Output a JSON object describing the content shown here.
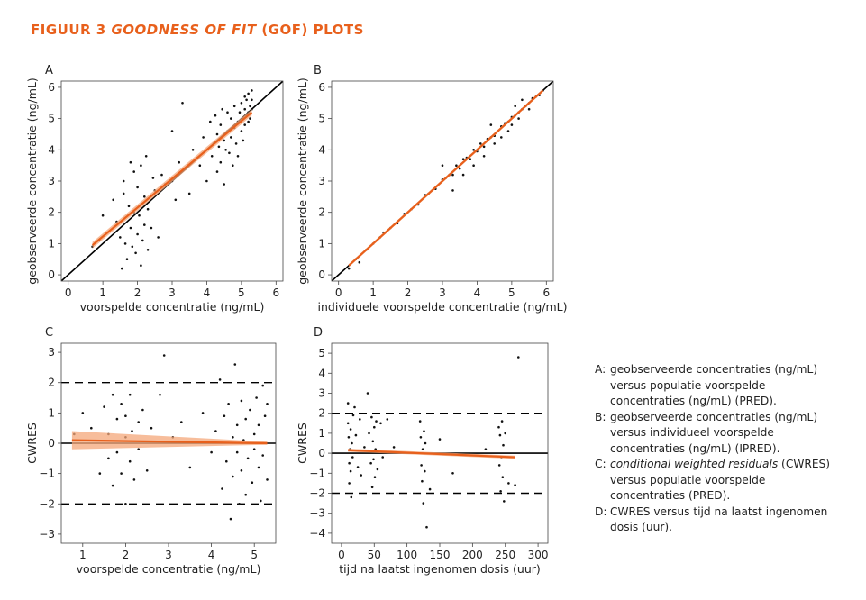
{
  "figure": {
    "title_prefix": "FIGUUR 3",
    "title_italic": "GOODNESS OF FIT",
    "title_suffix": "(GOF) PLOTS",
    "colors": {
      "title": "#e8601c",
      "trend": "#e8601c",
      "trend_band": "#f4a77a",
      "points": "#111111"
    }
  },
  "legend": [
    {
      "key": "A:",
      "text": "geobserveerde concentraties (ng/mL) versus populatie voorspelde concentraties (ng/mL) (PRED).",
      "italic": ""
    },
    {
      "key": "B:",
      "text": "geobserveerde concentraties (ng/mL) versus individueel voorspelde concentraties (ng/mL) (IPRED).",
      "italic": ""
    },
    {
      "key": "C:",
      "text": " (CWRES) versus populatie voorspelde concentraties (PRED).",
      "italic": "conditional weighted residuals"
    },
    {
      "key": "D:",
      "text": "CWRES versus tijd na laatst ingenomen dosis (uur).",
      "italic": ""
    }
  ],
  "chart_data": [
    {
      "panel": "A",
      "type": "scatter",
      "xlabel": "voorspelde concentratie (ng/mL)",
      "ylabel": "geobserveerde concentratie (ng/mL)",
      "xlim": [
        -0.2,
        6.2
      ],
      "ylim": [
        -0.2,
        6.2
      ],
      "xticks": [
        0,
        1,
        2,
        3,
        4,
        5,
        6
      ],
      "yticks": [
        0,
        1,
        2,
        3,
        4,
        5,
        6
      ],
      "reference": {
        "type": "identity",
        "label": "y = x"
      },
      "trend": {
        "x": [
          0.7,
          5.3
        ],
        "y": [
          0.95,
          5.2
        ],
        "band": 0.1
      },
      "points": [
        [
          0.7,
          0.9
        ],
        [
          0.9,
          1.1
        ],
        [
          1.0,
          1.9
        ],
        [
          1.3,
          2.4
        ],
        [
          1.4,
          1.7
        ],
        [
          1.5,
          1.2
        ],
        [
          1.55,
          0.2
        ],
        [
          1.6,
          2.6
        ],
        [
          1.6,
          3.0
        ],
        [
          1.65,
          1.0
        ],
        [
          1.7,
          0.5
        ],
        [
          1.75,
          2.2
        ],
        [
          1.8,
          3.6
        ],
        [
          1.8,
          1.5
        ],
        [
          1.85,
          0.9
        ],
        [
          1.9,
          2.0
        ],
        [
          1.9,
          3.3
        ],
        [
          1.95,
          0.7
        ],
        [
          2.0,
          1.3
        ],
        [
          2.0,
          2.8
        ],
        [
          2.05,
          1.9
        ],
        [
          2.1,
          0.3
        ],
        [
          2.1,
          3.5
        ],
        [
          2.15,
          1.1
        ],
        [
          2.2,
          2.5
        ],
        [
          2.2,
          1.6
        ],
        [
          2.25,
          3.8
        ],
        [
          2.3,
          2.1
        ],
        [
          2.3,
          0.8
        ],
        [
          2.4,
          1.5
        ],
        [
          2.45,
          3.1
        ],
        [
          2.5,
          2.7
        ],
        [
          2.6,
          1.2
        ],
        [
          2.7,
          3.2
        ],
        [
          2.8,
          2.9
        ],
        [
          3.0,
          4.6
        ],
        [
          3.0,
          3.0
        ],
        [
          3.1,
          2.4
        ],
        [
          3.2,
          3.6
        ],
        [
          3.3,
          5.5
        ],
        [
          3.4,
          3.4
        ],
        [
          3.5,
          2.6
        ],
        [
          3.6,
          4.0
        ],
        [
          3.8,
          3.5
        ],
        [
          3.9,
          4.4
        ],
        [
          4.0,
          3.0
        ],
        [
          4.1,
          4.9
        ],
        [
          4.15,
          3.8
        ],
        [
          4.2,
          4.2
        ],
        [
          4.25,
          5.1
        ],
        [
          4.3,
          4.5
        ],
        [
          4.3,
          3.3
        ],
        [
          4.35,
          4.1
        ],
        [
          4.4,
          4.8
        ],
        [
          4.4,
          3.6
        ],
        [
          4.45,
          5.3
        ],
        [
          4.5,
          4.3
        ],
        [
          4.5,
          2.9
        ],
        [
          4.55,
          4.0
        ],
        [
          4.6,
          4.6
        ],
        [
          4.6,
          5.2
        ],
        [
          4.65,
          3.9
        ],
        [
          4.7,
          4.4
        ],
        [
          4.7,
          5.0
        ],
        [
          4.75,
          3.5
        ],
        [
          4.8,
          4.7
        ],
        [
          4.8,
          5.4
        ],
        [
          4.85,
          4.2
        ],
        [
          4.9,
          4.9
        ],
        [
          4.9,
          3.8
        ],
        [
          4.95,
          5.2
        ],
        [
          5.0,
          4.6
        ],
        [
          5.0,
          5.5
        ],
        [
          5.05,
          5.0
        ],
        [
          5.05,
          4.3
        ],
        [
          5.1,
          5.3
        ],
        [
          5.1,
          5.7
        ],
        [
          5.1,
          4.8
        ],
        [
          5.15,
          5.1
        ],
        [
          5.15,
          5.6
        ],
        [
          5.2,
          5.2
        ],
        [
          5.2,
          4.9
        ],
        [
          5.2,
          5.8
        ],
        [
          5.25,
          5.4
        ],
        [
          5.25,
          5.0
        ],
        [
          5.3,
          5.6
        ],
        [
          5.3,
          5.3
        ],
        [
          5.3,
          5.9
        ]
      ]
    },
    {
      "panel": "B",
      "type": "scatter",
      "xlabel": "individuele voorspelde concentratie (ng/mL)",
      "ylabel": "geobserveerde concentratie (ng/mL)",
      "xlim": [
        -0.2,
        6.2
      ],
      "ylim": [
        -0.2,
        6.2
      ],
      "xticks": [
        0,
        1,
        2,
        3,
        4,
        5,
        6
      ],
      "yticks": [
        0,
        1,
        2,
        3,
        4,
        5,
        6
      ],
      "reference": {
        "type": "identity",
        "label": "y = x"
      },
      "trend": {
        "x": [
          0.3,
          5.9
        ],
        "y": [
          0.3,
          5.9
        ],
        "band": 0.05
      },
      "points": [
        [
          0.3,
          0.2
        ],
        [
          0.5,
          0.5
        ],
        [
          0.6,
          0.4
        ],
        [
          0.8,
          0.8
        ],
        [
          1.0,
          1.0
        ],
        [
          1.2,
          1.2
        ],
        [
          1.3,
          1.35
        ],
        [
          1.5,
          1.5
        ],
        [
          1.7,
          1.65
        ],
        [
          1.9,
          1.95
        ],
        [
          2.1,
          2.1
        ],
        [
          2.3,
          2.25
        ],
        [
          2.5,
          2.55
        ],
        [
          2.6,
          2.6
        ],
        [
          2.8,
          2.75
        ],
        [
          3.0,
          3.05
        ],
        [
          3.0,
          3.5
        ],
        [
          3.1,
          3.1
        ],
        [
          3.2,
          3.2
        ],
        [
          3.3,
          3.2
        ],
        [
          3.3,
          2.7
        ],
        [
          3.4,
          3.5
        ],
        [
          3.5,
          3.4
        ],
        [
          3.6,
          3.7
        ],
        [
          3.6,
          3.2
        ],
        [
          3.7,
          3.75
        ],
        [
          3.8,
          3.7
        ],
        [
          3.9,
          4.0
        ],
        [
          3.9,
          3.5
        ],
        [
          4.0,
          3.95
        ],
        [
          4.1,
          4.2
        ],
        [
          4.2,
          4.1
        ],
        [
          4.2,
          3.8
        ],
        [
          4.3,
          4.35
        ],
        [
          4.4,
          4.4
        ],
        [
          4.4,
          4.8
        ],
        [
          4.5,
          4.45
        ],
        [
          4.5,
          4.2
        ],
        [
          4.6,
          4.6
        ],
        [
          4.7,
          4.75
        ],
        [
          4.7,
          4.4
        ],
        [
          4.8,
          4.85
        ],
        [
          4.9,
          4.9
        ],
        [
          4.9,
          4.6
        ],
        [
          5.0,
          5.05
        ],
        [
          5.0,
          4.8
        ],
        [
          5.1,
          5.1
        ],
        [
          5.1,
          5.4
        ],
        [
          5.2,
          5.2
        ],
        [
          5.2,
          5.0
        ],
        [
          5.3,
          5.3
        ],
        [
          5.3,
          5.6
        ],
        [
          5.4,
          5.4
        ],
        [
          5.5,
          5.5
        ],
        [
          5.5,
          5.3
        ],
        [
          5.6,
          5.65
        ],
        [
          5.7,
          5.7
        ],
        [
          5.8,
          5.75
        ],
        [
          5.9,
          5.9
        ]
      ]
    },
    {
      "panel": "C",
      "type": "scatter",
      "xlabel": "voorspelde concentratie (ng/mL)",
      "ylabel": "CWRES",
      "xlim": [
        0.5,
        5.5
      ],
      "ylim": [
        -3.3,
        3.3
      ],
      "xticks": [
        1,
        2,
        3,
        4,
        5
      ],
      "yticks": [
        -3,
        -2,
        -1,
        0,
        1,
        2,
        3
      ],
      "reference_lines": [
        0,
        2,
        -2
      ],
      "trend": {
        "x": [
          0.75,
          5.3
        ],
        "y": [
          0.1,
          0.0
        ],
        "band_start": 0.3,
        "band_end": 0.05
      },
      "points": [
        [
          0.8,
          0.3
        ],
        [
          1.0,
          1.0
        ],
        [
          1.2,
          0.5
        ],
        [
          1.4,
          -1.0
        ],
        [
          1.5,
          1.2
        ],
        [
          1.6,
          0.3
        ],
        [
          1.6,
          -0.5
        ],
        [
          1.7,
          1.6
        ],
        [
          1.7,
          -1.4
        ],
        [
          1.8,
          0.8
        ],
        [
          1.8,
          -0.3
        ],
        [
          1.9,
          1.3
        ],
        [
          1.9,
          -1.0
        ],
        [
          2.0,
          0.2
        ],
        [
          2.0,
          -2.0
        ],
        [
          2.0,
          0.9
        ],
        [
          2.1,
          -0.6
        ],
        [
          2.1,
          1.6
        ],
        [
          2.15,
          0.4
        ],
        [
          2.2,
          -1.2
        ],
        [
          2.3,
          0.7
        ],
        [
          2.3,
          -0.2
        ],
        [
          2.4,
          1.1
        ],
        [
          2.5,
          -0.9
        ],
        [
          2.6,
          0.5
        ],
        [
          2.8,
          1.6
        ],
        [
          2.9,
          2.9
        ],
        [
          3.1,
          0.2
        ],
        [
          3.3,
          0.7
        ],
        [
          3.5,
          -0.8
        ],
        [
          3.8,
          1.0
        ],
        [
          4.0,
          -0.3
        ],
        [
          4.1,
          0.4
        ],
        [
          4.2,
          2.1
        ],
        [
          4.25,
          -1.5
        ],
        [
          4.3,
          0.9
        ],
        [
          4.35,
          -0.6
        ],
        [
          4.4,
          1.3
        ],
        [
          4.45,
          -2.5
        ],
        [
          4.5,
          0.2
        ],
        [
          4.5,
          -1.1
        ],
        [
          4.55,
          2.6
        ],
        [
          4.6,
          0.6
        ],
        [
          4.6,
          -0.3
        ],
        [
          4.65,
          -2.0
        ],
        [
          4.7,
          1.4
        ],
        [
          4.7,
          -0.9
        ],
        [
          4.75,
          0.1
        ],
        [
          4.8,
          -1.7
        ],
        [
          4.8,
          0.8
        ],
        [
          4.85,
          -0.5
        ],
        [
          4.9,
          1.1
        ],
        [
          4.95,
          -1.3
        ],
        [
          5.0,
          0.3
        ],
        [
          5.0,
          -0.2
        ],
        [
          5.05,
          1.5
        ],
        [
          5.1,
          -0.8
        ],
        [
          5.1,
          0.6
        ],
        [
          5.15,
          -1.9
        ],
        [
          5.2,
          1.9
        ],
        [
          5.2,
          -0.4
        ],
        [
          5.25,
          0.9
        ],
        [
          5.3,
          -1.2
        ],
        [
          5.3,
          1.3
        ]
      ]
    },
    {
      "panel": "D",
      "type": "scatter",
      "xlabel": "tijd na laatst ingenomen dosis (uur)",
      "ylabel": "CWRES",
      "xlim": [
        -15,
        315
      ],
      "ylim": [
        -4.5,
        5.5
      ],
      "xticks": [
        0,
        50,
        100,
        150,
        200,
        250,
        300
      ],
      "yticks": [
        -4,
        -3,
        -2,
        -1,
        0,
        1,
        2,
        3,
        4,
        5
      ],
      "reference_lines": [
        0,
        2,
        -2
      ],
      "trend": {
        "x": [
          10,
          265
        ],
        "y": [
          0.15,
          -0.2
        ],
        "band": 0.08
      },
      "points": [
        [
          10,
          2.5
        ],
        [
          10,
          1.5
        ],
        [
          11,
          0.8
        ],
        [
          12,
          -0.5
        ],
        [
          12,
          -1.5
        ],
        [
          13,
          0.2
        ],
        [
          14,
          1.2
        ],
        [
          14,
          -0.9
        ],
        [
          15,
          -2.2
        ],
        [
          16,
          0.5
        ],
        [
          17,
          -0.2
        ],
        [
          18,
          1.9
        ],
        [
          20,
          2.3
        ],
        [
          22,
          0.9
        ],
        [
          25,
          -0.7
        ],
        [
          28,
          1.7
        ],
        [
          30,
          -1.1
        ],
        [
          35,
          0.3
        ],
        [
          40,
          3.0
        ],
        [
          42,
          1.0
        ],
        [
          45,
          -0.5
        ],
        [
          46,
          1.8
        ],
        [
          47,
          -1.7
        ],
        [
          48,
          0.6
        ],
        [
          49,
          -0.3
        ],
        [
          50,
          1.3
        ],
        [
          51,
          -1.2
        ],
        [
          52,
          0.2
        ],
        [
          53,
          1.6
        ],
        [
          55,
          -0.8
        ],
        [
          60,
          1.5
        ],
        [
          63,
          -0.2
        ],
        [
          70,
          1.7
        ],
        [
          80,
          0.3
        ],
        [
          120,
          1.6
        ],
        [
          121,
          0.8
        ],
        [
          122,
          -0.6
        ],
        [
          123,
          -1.4
        ],
        [
          124,
          0.2
        ],
        [
          125,
          -2.5
        ],
        [
          126,
          1.1
        ],
        [
          127,
          -0.9
        ],
        [
          128,
          0.5
        ],
        [
          130,
          -3.7
        ],
        [
          135,
          -1.8
        ],
        [
          150,
          0.7
        ],
        [
          170,
          -1.0
        ],
        [
          220,
          0.2
        ],
        [
          240,
          1.3
        ],
        [
          241,
          -0.6
        ],
        [
          242,
          0.9
        ],
        [
          243,
          -1.9
        ],
        [
          244,
          -0.2
        ],
        [
          245,
          1.6
        ],
        [
          246,
          -1.2
        ],
        [
          247,
          0.4
        ],
        [
          248,
          -2.4
        ],
        [
          250,
          1.0
        ],
        [
          255,
          -1.5
        ],
        [
          265,
          -1.6
        ],
        [
          270,
          4.8
        ]
      ]
    }
  ]
}
